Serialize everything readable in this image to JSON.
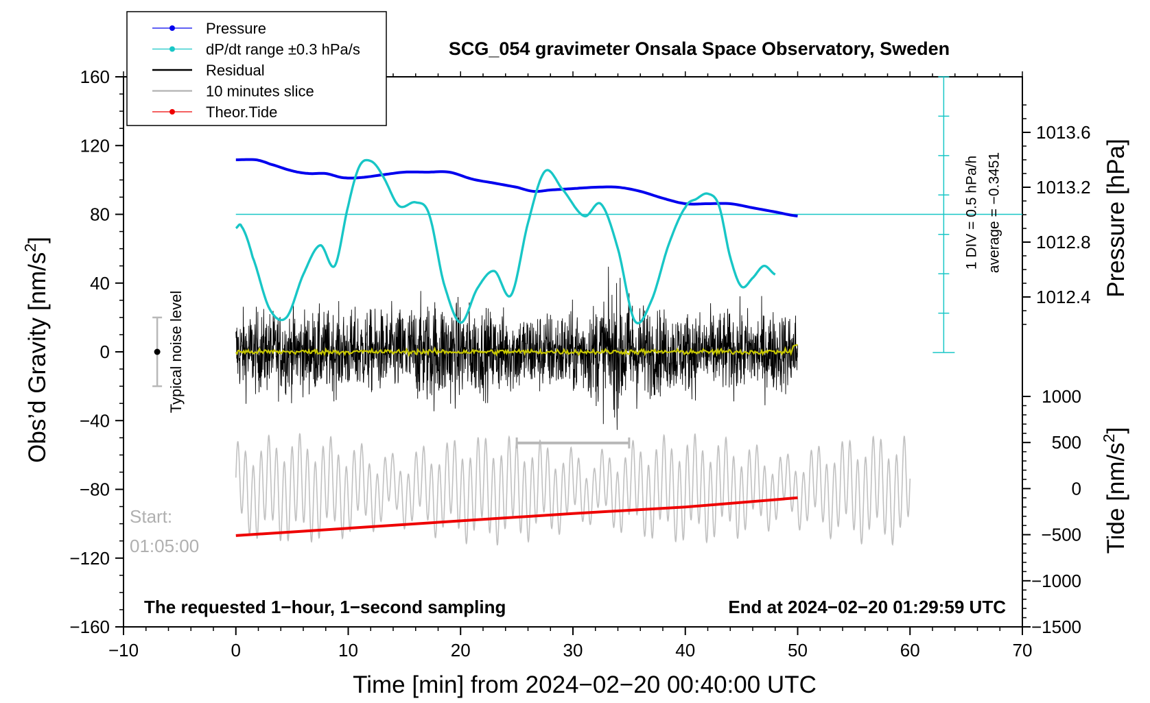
{
  "chart_data": {
    "type": "line",
    "title": "SCG_054 gravimeter Onsala Space Observatory, Sweden",
    "xlabel": "Time [min] from 2024−02−20 00:40:00 UTC",
    "xlim": [
      -10,
      70
    ],
    "x_ticks": [
      "−10",
      "0",
      "10",
      "20",
      "30",
      "40",
      "50",
      "60",
      "70"
    ],
    "left_axis": {
      "label": "Obs’d Gravity [nm/s2]",
      "label_base": "Obs’d Gravity [nm/s",
      "label_sup": "2",
      "label_end": "]",
      "ylim": [
        -160,
        160
      ],
      "ticks": [
        "160",
        "120",
        "80",
        "40",
        "0",
        "−40",
        "−80",
        "−120",
        "−160"
      ]
    },
    "pressure_axis": {
      "label": "Pressure [hPa]",
      "ticks": [
        "1013.6",
        "1013.2",
        "1012.8",
        "1012.4"
      ],
      "tick_values": [
        1013.6,
        1013.2,
        1012.8,
        1012.4
      ]
    },
    "tide_axis": {
      "label": "Tide [nm/s2]",
      "label_base": "Tide [nm/s",
      "label_sup": "2",
      "label_end": "]",
      "ylim": [
        -1500,
        1000
      ],
      "ticks": [
        "1000",
        "500",
        "0",
        "−500",
        "−1000",
        "−1500"
      ]
    },
    "legend": {
      "placement": "top-left",
      "entries": [
        {
          "name": "Pressure",
          "color": "#0000ee",
          "marker": true
        },
        {
          "name": "dP/dt range ±0.3 hPa/s",
          "color": "#18c6c6",
          "marker": true
        },
        {
          "name": "Residual",
          "color": "#000000",
          "marker": false
        },
        {
          "name": "10 minutes slice",
          "color": "#b8b8b8",
          "marker": false
        },
        {
          "name": "Theor.Tide",
          "color": "#ee0000",
          "marker": true
        }
      ]
    },
    "series": [
      {
        "name": "Pressure",
        "axis": "pressure",
        "color": "#0000ee",
        "x": [
          0,
          1.8,
          3,
          5,
          6.5,
          8,
          9.5,
          11,
          13,
          15,
          17,
          19,
          21,
          23,
          25,
          26.5,
          28,
          30,
          32,
          34,
          36,
          38,
          40,
          42,
          44,
          46,
          48,
          50
        ],
        "y": [
          1013.4,
          1013.4,
          1013.37,
          1013.32,
          1013.3,
          1013.3,
          1013.27,
          1013.27,
          1013.29,
          1013.31,
          1013.31,
          1013.31,
          1013.26,
          1013.23,
          1013.2,
          1013.17,
          1013.18,
          1013.19,
          1013.2,
          1013.2,
          1013.17,
          1013.12,
          1013.08,
          1013.08,
          1013.08,
          1013.05,
          1013.02,
          1012.99
        ]
      },
      {
        "name": "dP/dt range ±0.3 hPa/s",
        "axis": "gravity",
        "color": "#18c6c6",
        "x": [
          0,
          0.5,
          1.5,
          3,
          4.5,
          6,
          7.5,
          8.8,
          10,
          11,
          12,
          13,
          14.5,
          16,
          17.2,
          18.5,
          20,
          21.5,
          23,
          24.5,
          26,
          27.5,
          29,
          31,
          32.5,
          34,
          35.5,
          37,
          38.5,
          40,
          41,
          42,
          43,
          44,
          45,
          46,
          47,
          48
        ],
        "y": [
          72,
          73,
          55,
          25,
          20,
          45,
          62,
          50,
          85,
          108,
          111,
          103,
          85,
          87,
          80,
          40,
          17,
          37,
          47,
          33,
          75,
          105,
          95,
          79,
          86,
          60,
          18,
          30,
          62,
          84,
          89,
          92,
          85,
          55,
          38,
          43,
          50,
          45
        ]
      },
      {
        "name": "Theor.Tide",
        "axis": "tide",
        "color": "#ee0000",
        "x": [
          0,
          10,
          20,
          30,
          40,
          50
        ],
        "y": [
          -510,
          -430,
          -350,
          -270,
          -200,
          -100
        ]
      }
    ],
    "residual": {
      "xlim": [
        0,
        50
      ],
      "typical_amplitude_nm_s2": 22,
      "max_abs_nm_s2": 62,
      "smoothed_color": "#c8c800"
    },
    "ten_minute_slice": {
      "x_start": 25,
      "x_end": 35,
      "xlim": [
        0,
        60
      ]
    },
    "reference_line": {
      "axis": "gravity",
      "y": 80
    },
    "scale_bar": {
      "x": 63,
      "ticks_per_division": 7,
      "label_div": "1 DIV = 0.5 hPa/h",
      "label_avg": "average = −0.3451"
    },
    "noise_indicator": {
      "label": "Typical noise level",
      "x": -7,
      "y_center": 0,
      "half_range": 20
    }
  },
  "annotations": {
    "start_label": "Start:",
    "start_time": "01:05:00",
    "requested_note": "The requested 1−hour, 1−second sampling",
    "end_note": "End at 2024−02−20 01:29:59 UTC"
  }
}
